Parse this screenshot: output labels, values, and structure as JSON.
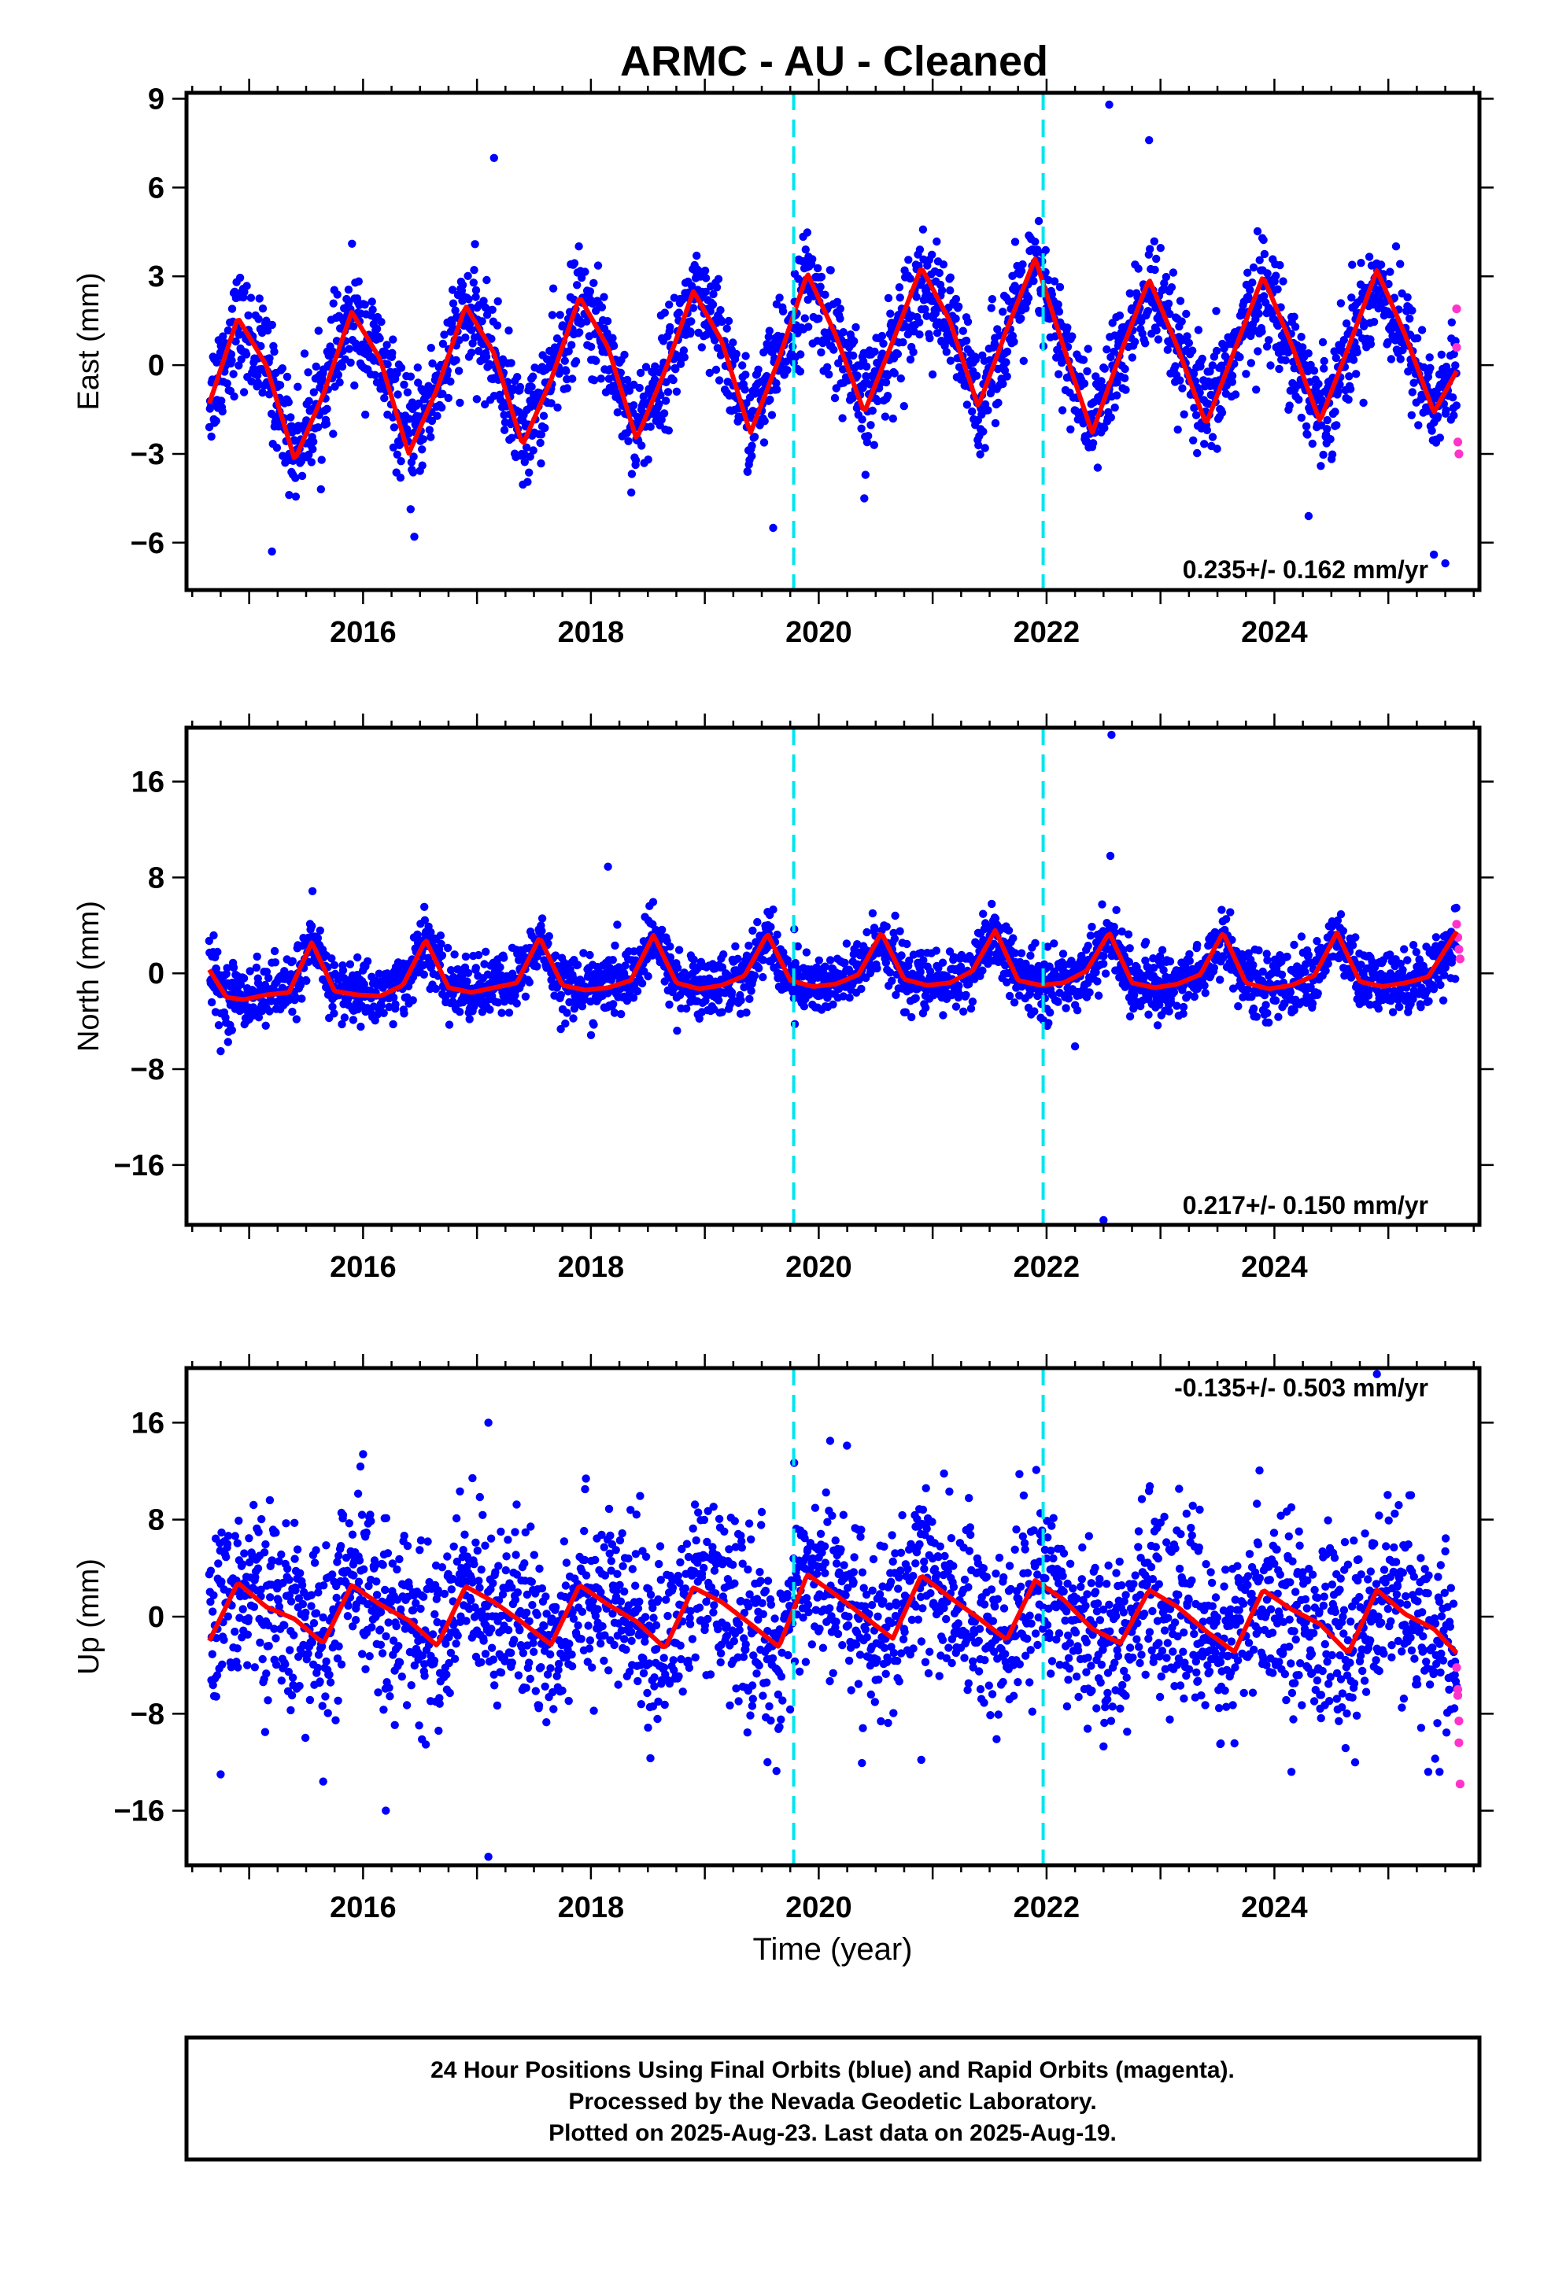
{
  "title": "ARMC  - AU - Cleaned",
  "xlabel": "Time (year)",
  "footer": {
    "line1": "24 Hour Positions Using Final Orbits (blue) and Rapid Orbits (magenta).",
    "line2": "Processed by the Nevada Geodetic Laboratory.",
    "line3": "Plotted on 2025-Aug-23. Last data on 2025-Aug-19."
  },
  "colors": {
    "final": "#0000ff",
    "rapid": "#ff33cc",
    "model": "#ff0000",
    "steps": "#00e5ee"
  },
  "chart_data": [
    {
      "type": "scatter",
      "ylabel": "East (mm)",
      "rate": "0.235+/- 0.162 mm/yr",
      "xlim": [
        2014.45,
        2025.8
      ],
      "ylim": [
        -7.6,
        9.2
      ],
      "yticks": [
        -6,
        -3,
        0,
        3,
        6,
        9
      ],
      "xticks": [
        2016,
        2018,
        2020,
        2022,
        2024
      ],
      "steps": [
        2019.78,
        2021.97
      ],
      "model": {
        "x": [
          2014.65,
          2014.9,
          2015.15,
          2015.4,
          2015.65,
          2015.9,
          2016.15,
          2016.4,
          2016.65,
          2016.9,
          2017.15,
          2017.4,
          2017.65,
          2017.9,
          2018.15,
          2018.4,
          2018.65,
          2018.9,
          2019.15,
          2019.4,
          2019.65,
          2019.9,
          2020.15,
          2020.4,
          2020.65,
          2020.9,
          2021.15,
          2021.4,
          2021.65,
          2021.9,
          2022.15,
          2022.4,
          2022.65,
          2022.9,
          2023.15,
          2023.4,
          2023.65,
          2023.9,
          2024.15,
          2024.4,
          2024.65,
          2024.9,
          2025.15,
          2025.4,
          2025.6
        ],
        "y": [
          -1.3,
          1.6,
          0.0,
          -3.2,
          -1.0,
          1.8,
          0.2,
          -3.0,
          -0.8,
          2.0,
          0.4,
          -2.7,
          -0.5,
          2.3,
          0.6,
          -2.5,
          -0.2,
          2.5,
          0.8,
          -2.3,
          0.2,
          3.1,
          1.0,
          -1.6,
          0.8,
          3.3,
          1.5,
          -1.4,
          1.2,
          3.6,
          0.6,
          -2.3,
          0.4,
          2.9,
          0.6,
          -2.0,
          0.5,
          3.0,
          0.7,
          -1.9,
          0.6,
          3.2,
          1.0,
          -1.6,
          -0.2
        ]
      },
      "scatter": {
        "amp_scale": 0.9,
        "noise": 0.9,
        "outliers": [
          [
            2015.2,
            -6.3
          ],
          [
            2019.6,
            -5.5
          ],
          [
            2020.4,
            -4.5
          ],
          [
            2022.55,
            8.8
          ],
          [
            2022.9,
            7.6
          ],
          [
            2017.15,
            7.0
          ],
          [
            2025.5,
            -6.7
          ],
          [
            2025.4,
            -6.4
          ],
          [
            2024.3,
            -5.1
          ],
          [
            2016.45,
            -5.8
          ]
        ]
      },
      "rapid": {
        "x": [
          2025.6,
          2025.6,
          2025.61,
          2025.62
        ],
        "y": [
          1.9,
          0.6,
          -2.6,
          -3.0
        ]
      }
    },
    {
      "type": "scatter",
      "ylabel": "North (mm)",
      "rate": "0.217+/- 0.150 mm/yr",
      "xlim": [
        2014.45,
        2025.8
      ],
      "ylim": [
        -21,
        20.5
      ],
      "yticks": [
        -16,
        -8,
        0,
        8,
        16
      ],
      "xticks": [
        2016,
        2018,
        2020,
        2022,
        2024
      ],
      "steps": [
        2019.78,
        2021.97
      ],
      "model": {
        "x": [
          2014.65,
          2014.8,
          2014.95,
          2015.15,
          2015.35,
          2015.55,
          2015.75,
          2015.95,
          2016.15,
          2016.35,
          2016.55,
          2016.75,
          2016.95,
          2017.15,
          2017.35,
          2017.55,
          2017.75,
          2017.95,
          2018.15,
          2018.35,
          2018.55,
          2018.75,
          2018.95,
          2019.15,
          2019.35,
          2019.55,
          2019.75,
          2019.95,
          2020.15,
          2020.35,
          2020.55,
          2020.75,
          2020.95,
          2021.15,
          2021.35,
          2021.55,
          2021.75,
          2021.95,
          2022.15,
          2022.35,
          2022.55,
          2022.75,
          2022.95,
          2023.15,
          2023.35,
          2023.55,
          2023.75,
          2023.95,
          2024.15,
          2024.35,
          2024.55,
          2024.75,
          2024.95,
          2025.15,
          2025.35,
          2025.6
        ],
        "y": [
          0.3,
          -2.0,
          -2.2,
          -1.8,
          -1.6,
          2.6,
          -1.5,
          -1.8,
          -1.9,
          -1.0,
          2.8,
          -1.2,
          -1.6,
          -1.2,
          -0.8,
          3.0,
          -1.0,
          -1.4,
          -1.2,
          -0.6,
          3.2,
          -0.8,
          -1.3,
          -1.0,
          -0.2,
          3.3,
          -0.6,
          -1.1,
          -0.9,
          -0.1,
          3.4,
          -0.5,
          -1.0,
          -0.8,
          0.2,
          3.6,
          -0.6,
          -1.0,
          -0.8,
          0.2,
          3.4,
          -0.8,
          -1.2,
          -0.9,
          -0.1,
          3.4,
          -0.8,
          -1.3,
          -1.0,
          -0.2,
          3.4,
          -0.7,
          -1.1,
          -0.8,
          -0.3,
          3.5
        ]
      },
      "scatter": {
        "amp_scale": 0.9,
        "noise": 1.3,
        "outliers": [
          [
            2018.15,
            8.9
          ],
          [
            2022.56,
            9.8
          ],
          [
            2022.57,
            19.9
          ],
          [
            2022.5,
            -20.6
          ],
          [
            2022.25,
            -6.1
          ],
          [
            2014.75,
            -6.5
          ]
        ]
      },
      "rapid": {
        "x": [
          2025.6,
          2025.61,
          2025.62,
          2025.63
        ],
        "y": [
          4.1,
          3.0,
          2.0,
          1.2
        ]
      }
    },
    {
      "type": "scatter",
      "ylabel": "Up (mm)",
      "rate": "-0.135+/- 0.503 mm/yr",
      "xlim": [
        2014.45,
        2025.8
      ],
      "ylim": [
        -20.5,
        20.5
      ],
      "yticks": [
        -16,
        -8,
        0,
        8,
        16
      ],
      "xticks": [
        2016,
        2018,
        2020,
        2022,
        2024
      ],
      "steps": [
        2019.78,
        2021.97
      ],
      "model": {
        "x": [
          2014.65,
          2014.9,
          2015.15,
          2015.4,
          2015.65,
          2015.9,
          2016.15,
          2016.4,
          2016.65,
          2016.9,
          2017.15,
          2017.4,
          2017.65,
          2017.9,
          2018.15,
          2018.4,
          2018.65,
          2018.9,
          2019.15,
          2019.4,
          2019.65,
          2019.9,
          2020.15,
          2020.4,
          2020.65,
          2020.9,
          2021.15,
          2021.4,
          2021.65,
          2021.9,
          2022.15,
          2022.4,
          2022.65,
          2022.9,
          2023.15,
          2023.4,
          2023.65,
          2023.9,
          2024.15,
          2024.4,
          2024.65,
          2024.9,
          2025.15,
          2025.4,
          2025.6
        ],
        "y": [
          -2.0,
          2.8,
          0.8,
          -0.2,
          -2.2,
          2.6,
          1.0,
          -0.3,
          -2.4,
          2.5,
          1.2,
          -0.5,
          -2.3,
          2.6,
          1.0,
          -0.4,
          -2.6,
          2.4,
          1.2,
          -0.6,
          -2.5,
          3.5,
          1.8,
          0.0,
          -1.8,
          3.4,
          1.6,
          -0.1,
          -1.9,
          3.0,
          1.4,
          -1.0,
          -2.2,
          2.2,
          0.8,
          -1.2,
          -2.9,
          2.2,
          0.6,
          -0.6,
          -3.0,
          2.2,
          0.2,
          -1.0,
          -3.0
        ]
      },
      "scatter": {
        "amp_scale": 1.1,
        "noise": 3.6,
        "outliers": [
          [
            2017.1,
            16.0
          ],
          [
            2017.1,
            -19.8
          ],
          [
            2016.2,
            -16.0
          ],
          [
            2015.65,
            -13.6
          ],
          [
            2014.75,
            -13.0
          ],
          [
            2020.9,
            -11.8
          ],
          [
            2019.55,
            -12.0
          ],
          [
            2024.15,
            -12.8
          ],
          [
            2025.35,
            -12.8
          ],
          [
            2025.45,
            -12.8
          ],
          [
            2022.5,
            -10.7
          ],
          [
            2024.9,
            20.0
          ],
          [
            2021.1,
            11.8
          ],
          [
            2020.1,
            14.5
          ],
          [
            2016.0,
            13.4
          ]
        ]
      },
      "rapid": {
        "x": [
          2025.6,
          2025.61,
          2025.61,
          2025.62,
          2025.62,
          2025.63
        ],
        "y": [
          -4.2,
          -6.0,
          -6.5,
          -8.6,
          -10.4,
          -13.8
        ]
      }
    }
  ]
}
